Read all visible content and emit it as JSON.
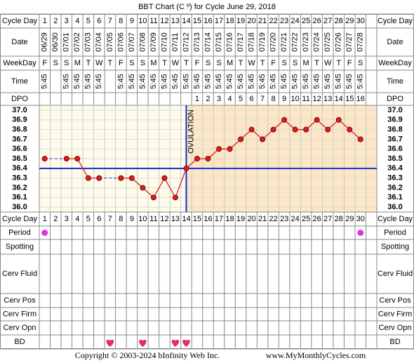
{
  "title": "BBT Chart (C º) for Cycle June 29, 2018",
  "row_labels": [
    "Cycle Day",
    "Date",
    "WeekDay",
    "Time",
    "DPO",
    "Cycle Day",
    "Period",
    "Spotting",
    "Cerv Fluid",
    "Cerv Pos",
    "Cerv Firm",
    "Cerv Opn",
    "BD"
  ],
  "chart_data": {
    "type": "line",
    "categories": [
      1,
      2,
      3,
      4,
      5,
      6,
      7,
      8,
      9,
      10,
      11,
      12,
      13,
      14,
      15,
      16,
      17,
      18,
      19,
      20,
      21,
      22,
      23,
      24,
      25,
      26,
      27,
      28,
      29,
      30
    ],
    "values": [
      36.5,
      null,
      36.5,
      36.5,
      36.3,
      36.3,
      null,
      36.3,
      36.3,
      36.2,
      36.1,
      36.3,
      36.1,
      36.4,
      36.5,
      36.5,
      36.6,
      36.6,
      36.7,
      36.8,
      36.7,
      36.8,
      36.9,
      36.8,
      36.8,
      36.9,
      36.8,
      36.9,
      36.8,
      36.7
    ],
    "color": "#d42020",
    "ylim": [
      35.95,
      37.05
    ],
    "yticks": [
      {
        "value": 37,
        "label": "37.0"
      },
      36.9,
      36.8,
      36.7,
      36.6,
      36.5,
      36.4,
      36.3,
      36.2,
      36.1,
      {
        "value": 36,
        "label": "36.0"
      }
    ],
    "grid": true,
    "coverline": 36.4,
    "ovulation_day": 14,
    "ovulation_label": "OVULATION"
  },
  "dates": [
    "06/29",
    "06/30",
    "07/01",
    "07/02",
    "07/03",
    "07/04",
    "07/05",
    "07/06",
    "07/07",
    "07/08",
    "07/09",
    "07/10",
    "07/11",
    "07/12",
    "07/13",
    "07/14",
    "07/15",
    "07/16",
    "07/17",
    "07/18",
    "07/19",
    "07/20",
    "07/21",
    "07/22",
    "07/23",
    "07/24",
    "07/25",
    "07/26",
    "07/27",
    "07/28"
  ],
  "weekdays": [
    "F",
    "S",
    "S",
    "M",
    "T",
    "W",
    "T",
    "F",
    "S",
    "S",
    "M",
    "T",
    "W",
    "T",
    "F",
    "S",
    "S",
    "M",
    "T",
    "W",
    "T",
    "F",
    "S",
    "S",
    "M",
    "T",
    "W",
    "T",
    "F",
    "S"
  ],
  "times": [
    "5:45",
    null,
    "5:45",
    "5:45",
    "5:45",
    "5:45",
    null,
    "5:45",
    "5:45",
    "5:45",
    "5:45",
    "5:45",
    "5:45",
    "5:45",
    "5:45",
    "5:45",
    "5:45",
    "5:45",
    "5:45",
    "5:45",
    "5:45",
    "5:45",
    "5:45",
    "5:45",
    "5:45",
    "5:45",
    "5:45",
    "5:45",
    "5:45",
    "5:45"
  ],
  "dpo": [
    null,
    null,
    null,
    null,
    null,
    null,
    null,
    null,
    null,
    null,
    null,
    null,
    null,
    null,
    1,
    2,
    3,
    4,
    5,
    6,
    7,
    8,
    9,
    10,
    11,
    12,
    13,
    14,
    15,
    16
  ],
  "period_days": [
    1,
    30
  ],
  "bd_days": [
    7,
    10,
    13,
    14
  ],
  "footer": {
    "copyright": "Copyright © 2003-2024 bInfinity Web Inc.",
    "site": "www.MyMonthlyCycles.com"
  }
}
